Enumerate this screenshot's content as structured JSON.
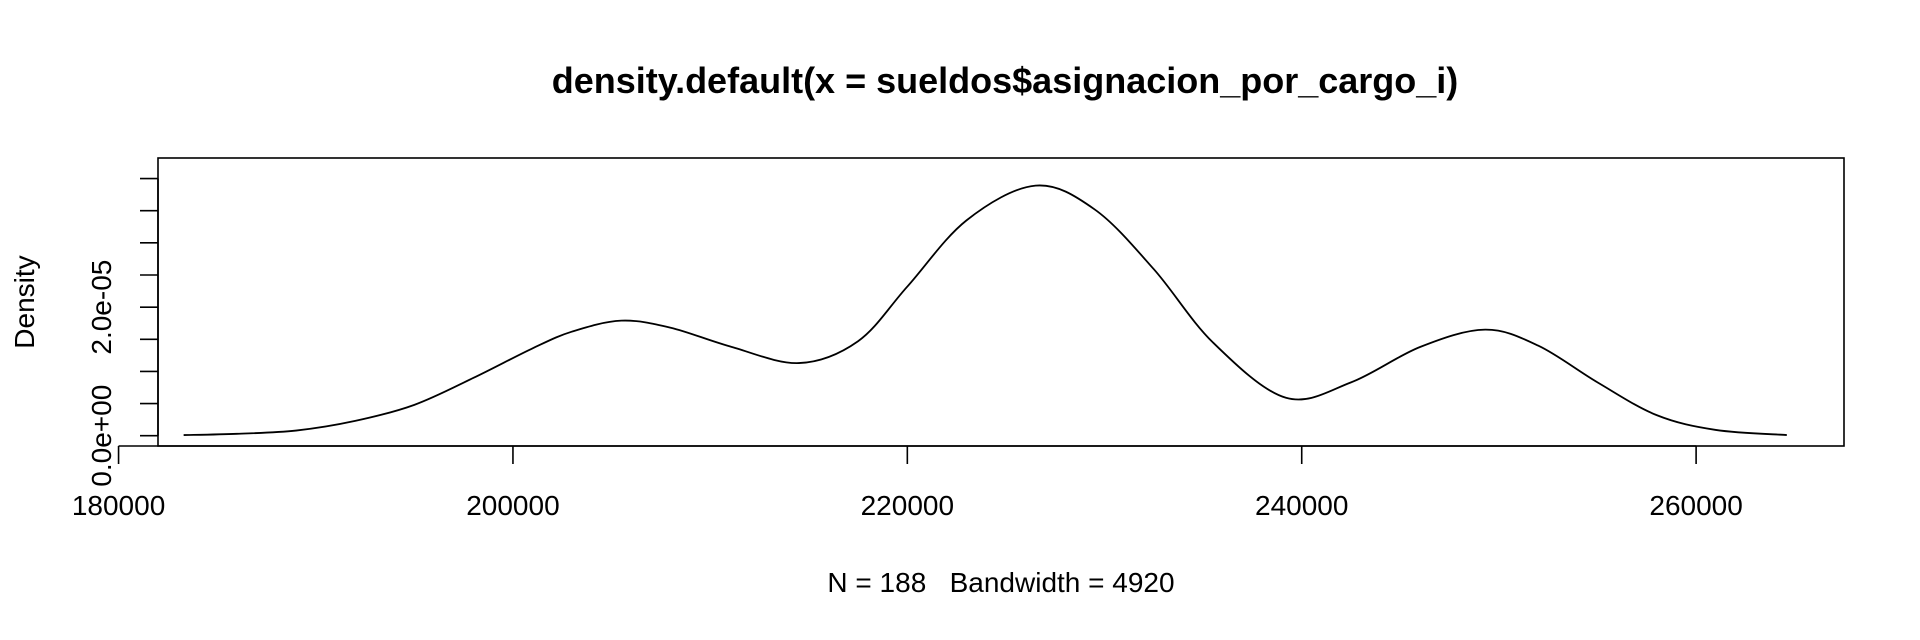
{
  "chart_data": {
    "type": "line",
    "title": "density.default(x = sueldos$asignacion_por_cargo_i)",
    "xlabel": "N = 188   Bandwidth = 4920",
    "ylabel": "Density",
    "xlim": [
      182000,
      267500
    ],
    "ylim": [
      -1.6e-06,
      4.32e-05
    ],
    "x_ticks": [
      180000,
      200000,
      220000,
      240000,
      260000
    ],
    "x_tick_labels": [
      "180000",
      "200000",
      "220000",
      "240000",
      "260000"
    ],
    "y_ticks": [
      0,
      5e-06,
      1e-05,
      1.5e-05,
      2e-05,
      2.5e-05,
      3e-05,
      3.5e-05,
      4e-05
    ],
    "y_tick_labels": [
      "0.0e+00",
      "",
      "",
      "",
      "2.0e-05",
      "",
      "",
      "",
      ""
    ],
    "grid": false,
    "series": [
      {
        "color": "#000000",
        "x": [
          183300,
          186000,
          189000,
          192000,
          195000,
          198000,
          201000,
          203000,
          205500,
          208000,
          211000,
          214500,
          217500,
          220000,
          223000,
          226500,
          229500,
          232500,
          235500,
          239200,
          242500,
          246000,
          249300,
          252000,
          255000,
          258000,
          261000,
          264600
        ],
        "y": [
          1e-07,
          3e-07,
          8e-07,
          2.3e-06,
          4.8e-06,
          9e-06,
          1.36e-05,
          1.62e-05,
          1.79e-05,
          1.68e-05,
          1.39e-05,
          1.13e-05,
          1.47e-05,
          2.32e-05,
          3.35e-05,
          3.89e-05,
          3.52e-05,
          2.59e-05,
          1.45e-05,
          5.9e-06,
          8.3e-06,
          1.38e-05,
          1.65e-05,
          1.4e-05,
          8.3e-06,
          3.2e-06,
          9e-07,
          1e-07
        ]
      }
    ]
  }
}
